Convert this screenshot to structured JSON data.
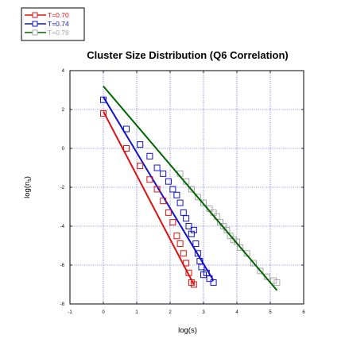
{
  "chart_data": {
    "type": "line",
    "title": "Cluster Size Distribution (Q6 Correlation)",
    "xlabel": "log(s)",
    "ylabel": "log(n_s)",
    "ylabel_base": "log(n",
    "ylabel_sub": "s",
    "ylabel_end": ")",
    "xlim": [
      -1,
      6
    ],
    "ylim": [
      -8,
      4
    ],
    "xticks": [
      -1,
      0,
      1,
      2,
      3,
      4,
      5,
      6
    ],
    "xtick_labels": [
      "-1",
      "0",
      "1",
      "2",
      "3",
      "4",
      "5",
      "6"
    ],
    "yticks": [
      -8,
      -6,
      -4,
      -2,
      0,
      2,
      4
    ],
    "ytick_labels": [
      "-8",
      "-6",
      "-4",
      "-2",
      "0",
      "2",
      "4"
    ],
    "grid": true,
    "legend_position": "top-left",
    "marker": "square",
    "series": [
      {
        "name": "T=0.70",
        "color": "#dd1111",
        "points": [
          [
            0.0,
            1.8
          ],
          [
            0.69,
            0.0
          ],
          [
            1.1,
            -0.9
          ],
          [
            1.39,
            -1.6
          ],
          [
            1.61,
            -2.1
          ],
          [
            1.79,
            -2.7
          ],
          [
            1.95,
            -3.3
          ],
          [
            2.08,
            -3.8
          ],
          [
            2.2,
            -4.5
          ],
          [
            2.3,
            -4.9
          ],
          [
            2.4,
            -5.4
          ],
          [
            2.48,
            -5.9
          ],
          [
            2.56,
            -6.4
          ],
          [
            2.64,
            -6.9
          ],
          [
            2.71,
            -7.0
          ]
        ],
        "fit": [
          [
            0.0,
            1.9
          ],
          [
            2.71,
            -7.0
          ]
        ]
      },
      {
        "name": "T=0.74",
        "color": "#1111cc",
        "points": [
          [
            0.0,
            2.5
          ],
          [
            0.69,
            1.0
          ],
          [
            1.1,
            0.2
          ],
          [
            1.39,
            -0.4
          ],
          [
            1.61,
            -1.0
          ],
          [
            1.79,
            -1.3
          ],
          [
            1.95,
            -1.7
          ],
          [
            2.08,
            -2.1
          ],
          [
            2.2,
            -2.4
          ],
          [
            2.3,
            -2.8
          ],
          [
            2.4,
            -3.3
          ],
          [
            2.48,
            -3.6
          ],
          [
            2.56,
            -4.0
          ],
          [
            2.64,
            -4.4
          ],
          [
            2.71,
            -4.2
          ],
          [
            2.77,
            -4.9
          ],
          [
            2.83,
            -5.4
          ],
          [
            2.89,
            -5.8
          ],
          [
            2.94,
            -6.1
          ],
          [
            3.0,
            -6.5
          ],
          [
            3.09,
            -6.4
          ],
          [
            3.18,
            -6.7
          ],
          [
            3.3,
            -6.9
          ]
        ],
        "fit": [
          [
            0.0,
            2.65
          ],
          [
            3.3,
            -6.8
          ]
        ]
      },
      {
        "name": "T=0.78",
        "color": "#a8a8a8",
        "line_color": "#006400",
        "points": [
          [
            2.3,
            -1.3
          ],
          [
            2.48,
            -1.7
          ],
          [
            2.64,
            -2.1
          ],
          [
            2.83,
            -2.5
          ],
          [
            3.0,
            -2.8
          ],
          [
            3.18,
            -3.1
          ],
          [
            3.3,
            -3.3
          ],
          [
            3.4,
            -3.5
          ],
          [
            3.5,
            -3.8
          ],
          [
            3.6,
            -4.0
          ],
          [
            3.7,
            -4.2
          ],
          [
            3.8,
            -4.5
          ],
          [
            3.9,
            -4.7
          ],
          [
            4.0,
            -4.8
          ],
          [
            4.1,
            -5.1
          ],
          [
            4.3,
            -5.4
          ],
          [
            4.5,
            -5.9
          ],
          [
            4.7,
            -6.3
          ],
          [
            4.9,
            -6.6
          ],
          [
            5.1,
            -6.8
          ],
          [
            5.2,
            -6.9
          ]
        ],
        "fit": [
          [
            0.0,
            3.2
          ],
          [
            5.2,
            -7.3
          ]
        ]
      }
    ]
  }
}
